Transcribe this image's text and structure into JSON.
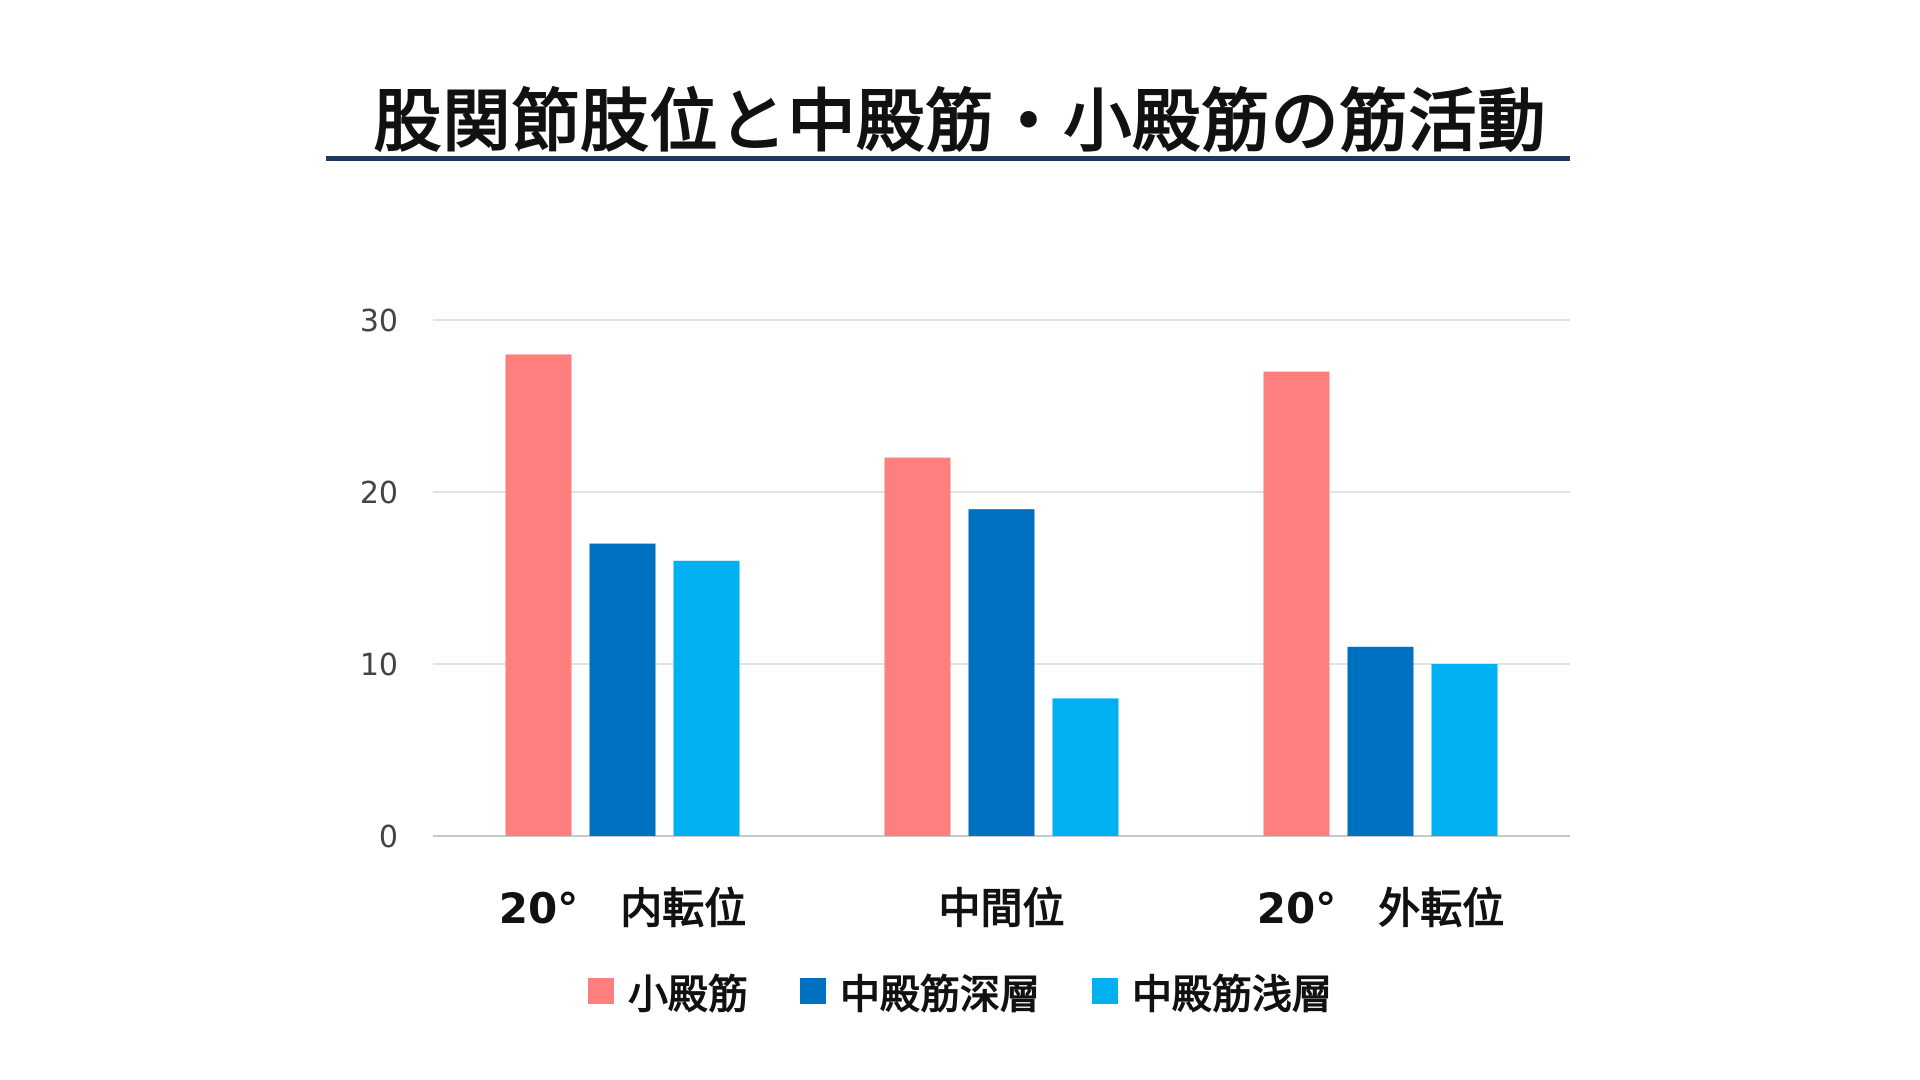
{
  "chart_data": {
    "type": "bar",
    "title": "股関節肢位と中殿筋・小殿筋の筋活動",
    "categories": [
      "20°　内転位",
      "中間位",
      "20°　外転位"
    ],
    "series": [
      {
        "name": "小殿筋",
        "color": "#ff7f7f",
        "values": [
          28,
          22,
          27
        ]
      },
      {
        "name": "中殿筋深層",
        "color": "#0070c0",
        "values": [
          17,
          19,
          11
        ]
      },
      {
        "name": "中殿筋浅層",
        "color": "#00b0f0",
        "values": [
          16,
          8,
          10
        ]
      }
    ],
    "ylim": [
      0,
      30
    ],
    "yticks": [
      0,
      10,
      20,
      30
    ],
    "grid": true,
    "legend_position": "bottom",
    "xlabel": "",
    "ylabel": ""
  }
}
